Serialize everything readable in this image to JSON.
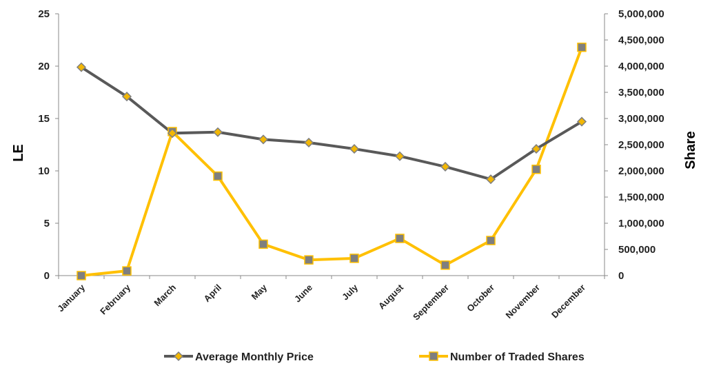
{
  "chart_data": {
    "type": "line",
    "categories": [
      "January",
      "February",
      "March",
      "April",
      "May",
      "June",
      "July",
      "August",
      "September",
      "October",
      "November",
      "December"
    ],
    "series": [
      {
        "name": "Average Monthly Price",
        "axis": "left",
        "color": "#595959",
        "marker": "diamond",
        "marker_color": "#F2B705",
        "values": [
          19.9,
          17.1,
          13.6,
          13.7,
          13.0,
          12.7,
          12.1,
          11.4,
          10.4,
          9.2,
          12.1,
          14.7
        ]
      },
      {
        "name": "Number of Traded Shares",
        "axis": "right",
        "color": "#FFC000",
        "marker": "square",
        "marker_color": "#7F7F7F",
        "values": [
          0,
          90000,
          2750000,
          1900000,
          600000,
          300000,
          330000,
          710000,
          200000,
          670000,
          2030000,
          4360000
        ]
      }
    ],
    "ylabel": "LE",
    "y2label": "Share",
    "ylim": [
      0,
      25
    ],
    "y2lim": [
      0,
      5000000
    ],
    "yticks": [
      "0",
      "5",
      "10",
      "15",
      "20",
      "25"
    ],
    "y2ticks": [
      "0",
      "500,000",
      "1,000,000",
      "1,500,000",
      "2,000,000",
      "2,500,000",
      "3,000,000",
      "3,500,000",
      "4,000,000",
      "4,500,000",
      "5,000,000"
    ],
    "grid": false,
    "legend_position": "bottom"
  }
}
